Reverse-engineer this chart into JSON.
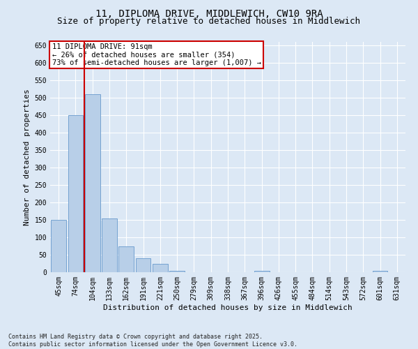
{
  "title_line1": "11, DIPLOMA DRIVE, MIDDLEWICH, CW10 9RA",
  "title_line2": "Size of property relative to detached houses in Middlewich",
  "xlabel": "Distribution of detached houses by size in Middlewich",
  "ylabel": "Number of detached properties",
  "categories": [
    "45sqm",
    "74sqm",
    "104sqm",
    "133sqm",
    "162sqm",
    "191sqm",
    "221sqm",
    "250sqm",
    "279sqm",
    "309sqm",
    "338sqm",
    "367sqm",
    "396sqm",
    "426sqm",
    "455sqm",
    "484sqm",
    "514sqm",
    "543sqm",
    "572sqm",
    "601sqm",
    "631sqm"
  ],
  "values": [
    150,
    450,
    510,
    155,
    75,
    40,
    25,
    5,
    0,
    0,
    0,
    0,
    5,
    0,
    0,
    0,
    0,
    0,
    0,
    5,
    0
  ],
  "bar_color": "#b8cfe8",
  "bar_edge_color": "#6699cc",
  "vline_color": "#cc0000",
  "vline_x": 1.5,
  "annotation_title": "11 DIPLOMA DRIVE: 91sqm",
  "annotation_line2": "← 26% of detached houses are smaller (354)",
  "annotation_line3": "73% of semi-detached houses are larger (1,007) →",
  "annotation_box_color": "#ffffff",
  "annotation_box_edge": "#cc0000",
  "ylim": [
    0,
    660
  ],
  "yticks": [
    0,
    50,
    100,
    150,
    200,
    250,
    300,
    350,
    400,
    450,
    500,
    550,
    600,
    650
  ],
  "bg_color": "#dce8f5",
  "plot_bg_color": "#dce8f5",
  "footer_line1": "Contains HM Land Registry data © Crown copyright and database right 2025.",
  "footer_line2": "Contains public sector information licensed under the Open Government Licence v3.0.",
  "title_fontsize": 10,
  "subtitle_fontsize": 9,
  "tick_fontsize": 7,
  "ylabel_fontsize": 8,
  "xlabel_fontsize": 8,
  "annotation_fontsize": 7.5,
  "footer_fontsize": 6
}
